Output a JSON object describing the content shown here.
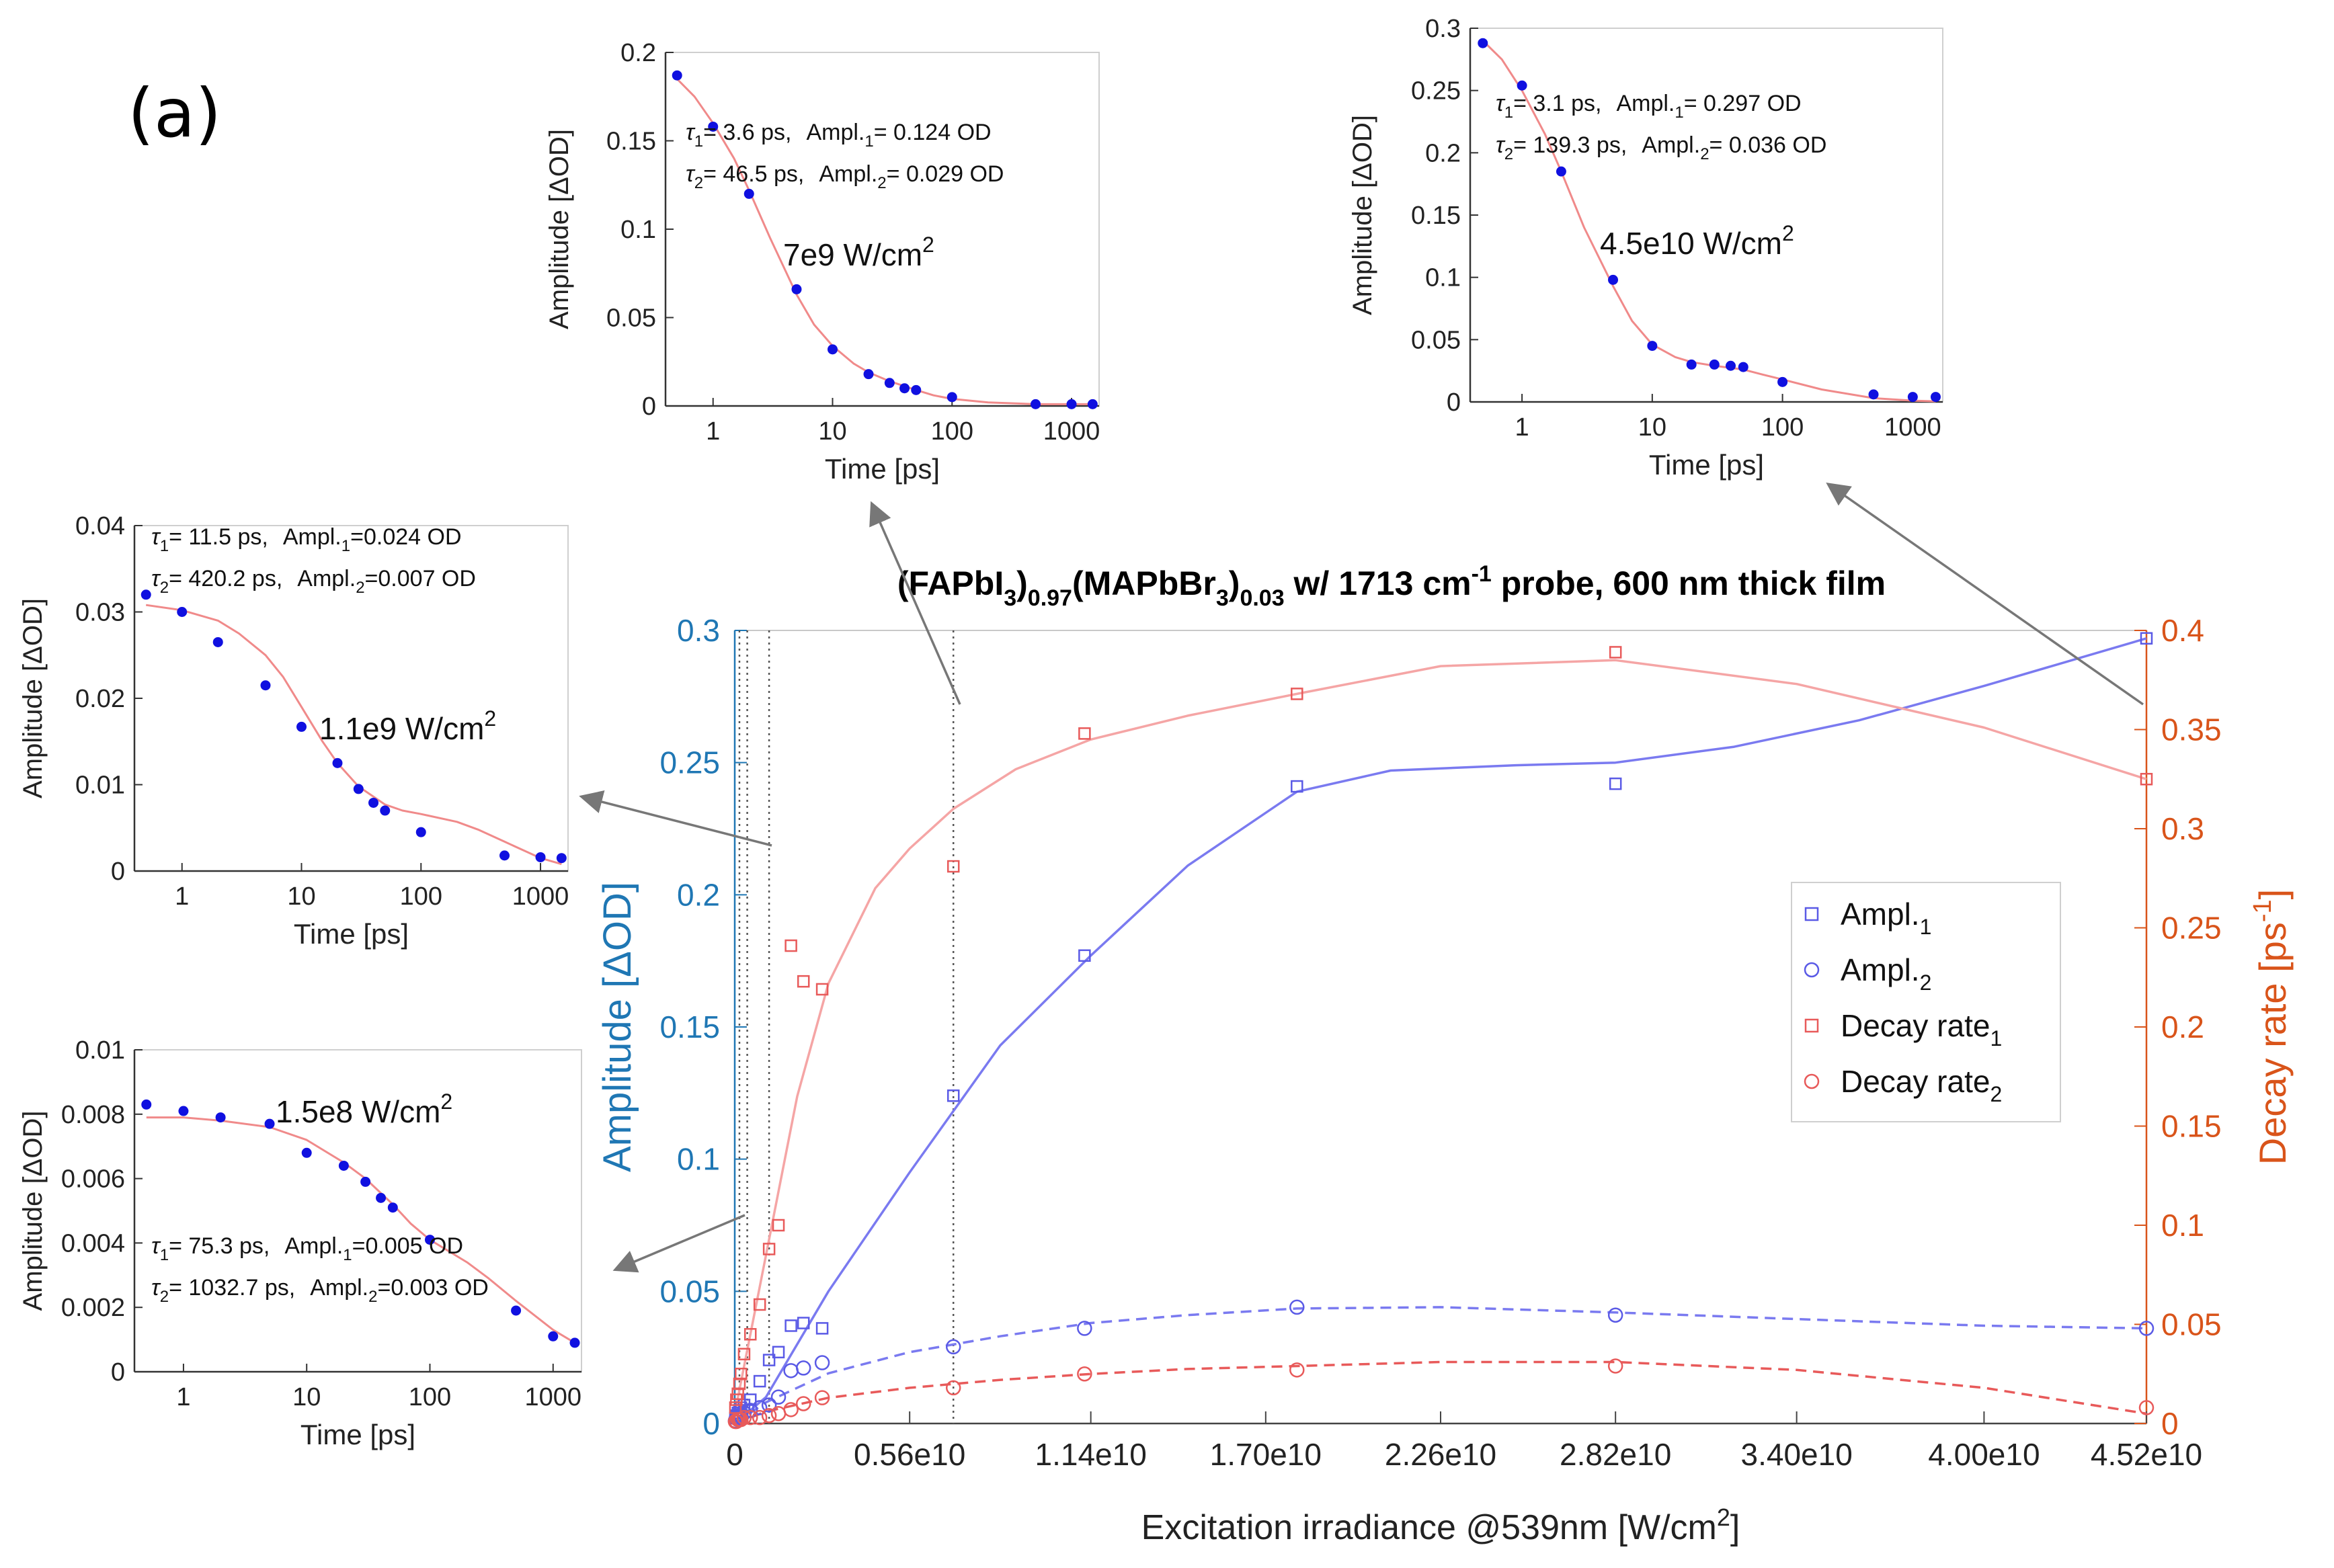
{
  "panel_label": "(a)",
  "chart_data": [
    {
      "id": "main",
      "type": "scatter",
      "title_parts": {
        "t1": "(FAPbI",
        "s1": "3",
        "t2": ")",
        "s2": "0.97",
        "t3": "(MAPbBr",
        "s3": "3",
        "t4": ")",
        "s4": "0.03",
        "t5": " w/ 1713 cm",
        "sup1": "-1",
        "t6": " probe, 600 nm thick film"
      },
      "xlabel": "Excitation irradiance @539nm [W/cm",
      "xlabel_sup": "2",
      "xlabel_end": "]",
      "ylabel_left": "Amplitude [ΔOD]",
      "ylabel_right": "Decay rate [ps",
      "ylabel_right_sup": "-1",
      "ylabel_right_end": "]",
      "xlim": [
        0,
        45200000000.0
      ],
      "ylim_left": [
        0,
        0.3
      ],
      "ylim_right": [
        0,
        0.4
      ],
      "x_ticks": [
        0,
        5600000000.0,
        11400000000.0,
        17000000000.0,
        22600000000.0,
        28200000000.0,
        34000000000.0,
        40000000000.0,
        45200000000.0
      ],
      "x_tick_labels": [
        "0",
        "0.56e10",
        "1.14e10",
        "1.70e10",
        "2.26e10",
        "2.82e10",
        "3.40e10",
        "4.00e10",
        "4.52e10"
      ],
      "y_left_ticks": [
        0,
        0.05,
        0.1,
        0.15,
        0.2,
        0.25,
        0.3
      ],
      "y_left_tick_labels": [
        "0",
        "0.05",
        "0.1",
        "0.15",
        "0.2",
        "0.25",
        "0.3"
      ],
      "y_right_ticks": [
        0,
        0.05,
        0.1,
        0.15,
        0.2,
        0.25,
        0.3,
        0.35,
        0.4
      ],
      "y_right_tick_labels": [
        "0",
        "0.05",
        "0.1",
        "0.15",
        "0.2",
        "0.25",
        "0.3",
        "0.35",
        "0.4"
      ],
      "vlines": [
        150000000.0,
        400000000.0,
        1100000000.0,
        7000000000.0
      ],
      "legend": {
        "position": "right-middle",
        "entries": [
          {
            "text": "Ampl.",
            "sub": "1",
            "color": "#5a5ae6",
            "marker": "square"
          },
          {
            "text": "Ampl.",
            "sub": "2",
            "color": "#5a5ae6",
            "marker": "circle"
          },
          {
            "text": "Decay rate",
            "sub": "1",
            "color": "#e85a5a",
            "marker": "square"
          },
          {
            "text": "Decay rate",
            "sub": "2",
            "color": "#e85a5a",
            "marker": "circle"
          }
        ]
      },
      "series": [
        {
          "name": "Ampl.1",
          "axis": "left",
          "marker": "square",
          "color": "#5a5ae6",
          "x": [
            20000000.0,
            50000000.0,
            100000000.0,
            150000000.0,
            200000000.0,
            300000000.0,
            500000000.0,
            800000000.0,
            1100000000.0,
            1400000000.0,
            1800000000.0,
            2200000000.0,
            2800000000.0,
            7000000000.0,
            11200000000.0,
            18000000000.0,
            28200000000.0,
            45200000000.0
          ],
          "y": [
            0.002,
            0.003,
            0.004,
            0.005,
            0.006,
            0.007,
            0.009,
            0.016,
            0.024,
            0.027,
            0.037,
            0.038,
            0.036,
            0.124,
            0.177,
            0.241,
            0.242,
            0.297
          ]
        },
        {
          "name": "Ampl.2",
          "axis": "left",
          "marker": "circle",
          "color": "#5a5ae6",
          "x": [
            20000000.0,
            50000000.0,
            100000000.0,
            150000000.0,
            200000000.0,
            300000000.0,
            500000000.0,
            800000000.0,
            1100000000.0,
            1400000000.0,
            1800000000.0,
            2200000000.0,
            2800000000.0,
            7000000000.0,
            11200000000.0,
            18000000000.0,
            28200000000.0,
            45200000000.0
          ],
          "y": [
            0.001,
            0.002,
            0.002,
            0.003,
            0.003,
            0.004,
            0.005,
            0.006,
            0.007,
            0.01,
            0.02,
            0.021,
            0.023,
            0.029,
            0.036,
            0.044,
            0.041,
            0.036
          ]
        },
        {
          "name": "Decay rate1",
          "axis": "right",
          "marker": "square",
          "color": "#e85a5a",
          "x": [
            20000000.0,
            50000000.0,
            100000000.0,
            150000000.0,
            200000000.0,
            300000000.0,
            500000000.0,
            800000000.0,
            1100000000.0,
            1400000000.0,
            1800000000.0,
            2200000000.0,
            2800000000.0,
            7000000000.0,
            11200000000.0,
            18000000000.0,
            28200000000.0,
            45200000000.0
          ],
          "y": [
            0.008,
            0.012,
            0.015,
            0.02,
            0.025,
            0.035,
            0.045,
            0.06,
            0.088,
            0.1,
            0.241,
            0.223,
            0.219,
            0.281,
            0.348,
            0.368,
            0.389,
            0.325
          ]
        },
        {
          "name": "Decay rate2",
          "axis": "right",
          "marker": "circle",
          "color": "#e85a5a",
          "x": [
            20000000.0,
            50000000.0,
            100000000.0,
            150000000.0,
            200000000.0,
            300000000.0,
            500000000.0,
            800000000.0,
            1100000000.0,
            1400000000.0,
            1800000000.0,
            2200000000.0,
            2800000000.0,
            7000000000.0,
            11200000000.0,
            18000000000.0,
            28200000000.0,
            45200000000.0
          ],
          "y": [
            0.001,
            0.001,
            0.002,
            0.002,
            0.002,
            0.003,
            0.003,
            0.003,
            0.004,
            0.005,
            0.007,
            0.01,
            0.013,
            0.018,
            0.025,
            0.027,
            0.029,
            0.008
          ]
        }
      ],
      "fits": [
        {
          "name": "Ampl.1 fit",
          "axis": "left",
          "dash": false,
          "color": "#7a7af0",
          "x": [
            0,
            1000000000.0,
            3000000000.0,
            5600000000.0,
            8500000000.0,
            11400000000.0,
            14500000000.0,
            18000000000.0,
            21000000000.0,
            25000000000.0,
            28200000000.0,
            32000000000.0,
            36000000000.0,
            40000000000.0,
            45200000000.0
          ],
          "y": [
            0,
            0.01,
            0.05,
            0.095,
            0.143,
            0.177,
            0.211,
            0.239,
            0.247,
            0.249,
            0.25,
            0.256,
            0.266,
            0.279,
            0.297
          ]
        },
        {
          "name": "Ampl.2 fit",
          "axis": "left",
          "dash": true,
          "color": "#7a7af0",
          "x": [
            0,
            1000000000.0,
            3000000000.0,
            5600000000.0,
            8500000000.0,
            11400000000.0,
            14500000000.0,
            18000000000.0,
            22600000000.0,
            28200000000.0,
            34000000000.0,
            40000000000.0,
            45200000000.0
          ],
          "y": [
            0,
            0.008,
            0.019,
            0.027,
            0.033,
            0.038,
            0.041,
            0.0435,
            0.044,
            0.042,
            0.0395,
            0.037,
            0.036
          ]
        },
        {
          "name": "Decay rate1 fit",
          "axis": "right",
          "dash": false,
          "color": "#f5a5a5",
          "x": [
            0,
            1000000000.0,
            2000000000.0,
            3000000000.0,
            4500000000.0,
            5600000000.0,
            7000000000.0,
            9000000000.0,
            11400000000.0,
            14500000000.0,
            18000000000.0,
            22600000000.0,
            28200000000.0,
            34000000000.0,
            40000000000.0,
            45200000000.0
          ],
          "y": [
            0.005,
            0.085,
            0.165,
            0.222,
            0.27,
            0.29,
            0.31,
            0.33,
            0.345,
            0.357,
            0.368,
            0.382,
            0.385,
            0.373,
            0.351,
            0.325
          ]
        },
        {
          "name": "Decay rate2 fit",
          "axis": "right",
          "dash": true,
          "color": "#e85a5a",
          "x": [
            0,
            1000000000.0,
            3000000000.0,
            5600000000.0,
            8500000000.0,
            11400000000.0,
            14500000000.0,
            18000000000.0,
            22600000000.0,
            28200000000.0,
            34000000000.0,
            40000000000.0,
            45200000000.0
          ],
          "y": [
            0,
            0.006,
            0.013,
            0.018,
            0.022,
            0.025,
            0.0275,
            0.029,
            0.031,
            0.031,
            0.027,
            0.018,
            0.005
          ]
        }
      ]
    },
    {
      "id": "inset-7e9",
      "type": "line",
      "xscale": "log",
      "xlim": [
        0.4,
        1700
      ],
      "ylim": [
        0,
        0.2
      ],
      "x_ticks": [
        1,
        10,
        100,
        1000
      ],
      "x_tick_labels": [
        "1",
        "10",
        "100",
        "1000"
      ],
      "y_ticks": [
        0,
        0.05,
        0.1,
        0.15,
        0.2
      ],
      "y_tick_labels": [
        "0",
        "0.05",
        "0.1",
        "0.15",
        "0.2"
      ],
      "xlabel": "Time [ps]",
      "ylabel": "Amplitude [ΔOD]",
      "irradiance": "7e9 W/cm",
      "irradiance_sup": "2",
      "annot": {
        "t1": "τ",
        "t1s": "1",
        "t1v": "= 3.6 ps,",
        "a1": "Ampl.",
        "a1s": "1",
        "a1v": "= 0.124 OD",
        "t2": "τ",
        "t2s": "2",
        "t2v": "= 46.5 ps,",
        "a2": "Ampl.",
        "a2s": "2",
        "a2v": "= 0.029 OD"
      },
      "points_x": [
        0.5,
        1,
        2,
        5,
        10,
        20,
        30,
        40,
        50,
        100,
        500,
        1000,
        1500
      ],
      "points_y": [
        0.187,
        0.158,
        0.12,
        0.066,
        0.032,
        0.018,
        0.013,
        0.01,
        0.009,
        0.005,
        0.001,
        0.001,
        0.001
      ],
      "fit_x": [
        0.5,
        0.7,
        1,
        1.5,
        2,
        3,
        5,
        7,
        10,
        15,
        20,
        30,
        50,
        70,
        100,
        200,
        500,
        1000,
        1500
      ],
      "fit_y": [
        0.185,
        0.175,
        0.16,
        0.14,
        0.122,
        0.095,
        0.063,
        0.046,
        0.034,
        0.024,
        0.019,
        0.014,
        0.009,
        0.006,
        0.004,
        0.002,
        0.001,
        0.001,
        0.001
      ]
    },
    {
      "id": "inset-4.5e10",
      "type": "line",
      "xscale": "log",
      "xlim": [
        0.4,
        1700
      ],
      "ylim": [
        0,
        0.3
      ],
      "x_ticks": [
        1,
        10,
        100,
        1000
      ],
      "x_tick_labels": [
        "1",
        "10",
        "100",
        "1000"
      ],
      "y_ticks": [
        0,
        0.05,
        0.1,
        0.15,
        0.2,
        0.25,
        0.3
      ],
      "y_tick_labels": [
        "0",
        "0.05",
        "0.1",
        "0.15",
        "0.2",
        "0.25",
        "0.3"
      ],
      "xlabel": "Time [ps]",
      "ylabel": "Amplitude [ΔOD]",
      "irradiance": "4.5e10 W/cm",
      "irradiance_sup": "2",
      "annot": {
        "t1": "τ",
        "t1s": "1",
        "t1v": "= 3.1 ps,",
        "a1": "Ampl.",
        "a1s": "1",
        "a1v": "= 0.297 OD",
        "t2": "τ",
        "t2s": "2",
        "t2v": "= 139.3 ps,",
        "a2": "Ampl.",
        "a2s": "2",
        "a2v": "= 0.036 OD"
      },
      "points_x": [
        0.5,
        1,
        2,
        5,
        10,
        20,
        30,
        40,
        50,
        100,
        500,
        1000,
        1500
      ],
      "points_y": [
        0.288,
        0.254,
        0.185,
        0.098,
        0.045,
        0.03,
        0.03,
        0.029,
        0.028,
        0.016,
        0.006,
        0.004,
        0.004
      ],
      "fit_x": [
        0.5,
        0.7,
        1,
        1.5,
        2,
        3,
        5,
        7,
        10,
        15,
        20,
        30,
        50,
        70,
        100,
        200,
        500,
        1000,
        1500
      ],
      "fit_y": [
        0.29,
        0.275,
        0.25,
        0.215,
        0.185,
        0.14,
        0.093,
        0.065,
        0.046,
        0.036,
        0.032,
        0.029,
        0.026,
        0.022,
        0.018,
        0.01,
        0.003,
        0.001,
        0.0005
      ]
    },
    {
      "id": "inset-1.1e9",
      "type": "line",
      "xscale": "log",
      "xlim": [
        0.4,
        1700
      ],
      "ylim": [
        0,
        0.04
      ],
      "x_ticks": [
        1,
        10,
        100,
        1000
      ],
      "x_tick_labels": [
        "1",
        "10",
        "100",
        "1000"
      ],
      "y_ticks": [
        0,
        0.01,
        0.02,
        0.03,
        0.04
      ],
      "y_tick_labels": [
        "0",
        "0.01",
        "0.02",
        "0.03",
        "0.04"
      ],
      "xlabel": "Time [ps]",
      "ylabel": "Amplitude [ΔOD]",
      "irradiance": "1.1e9 W/cm",
      "irradiance_sup": "2",
      "annot": {
        "t1": "τ",
        "t1s": "1",
        "t1v": "= 11.5 ps,",
        "a1": "Ampl.",
        "a1s": "1",
        "a1v": "=0.024 OD",
        "t2": "τ",
        "t2s": "2",
        "t2v": "= 420.2 ps,",
        "a2": "Ampl.",
        "a2s": "2",
        "a2v": "=0.007 OD"
      },
      "points_x": [
        0.5,
        1,
        2,
        5,
        10,
        20,
        30,
        40,
        50,
        100,
        500,
        1000,
        1500
      ],
      "points_y": [
        0.032,
        0.03,
        0.0265,
        0.0215,
        0.0167,
        0.0125,
        0.0095,
        0.0079,
        0.007,
        0.0045,
        0.0018,
        0.0016,
        0.0015
      ],
      "fit_x": [
        0.5,
        1,
        2,
        3,
        5,
        7,
        10,
        15,
        20,
        30,
        50,
        70,
        100,
        200,
        300,
        500,
        1000,
        1500
      ],
      "fit_y": [
        0.0308,
        0.0302,
        0.029,
        0.0275,
        0.025,
        0.0225,
        0.019,
        0.015,
        0.0125,
        0.0098,
        0.0077,
        0.007,
        0.0066,
        0.0057,
        0.0048,
        0.0034,
        0.0015,
        0.0008
      ]
    },
    {
      "id": "inset-1.5e8",
      "type": "line",
      "xscale": "log",
      "xlim": [
        0.4,
        1700
      ],
      "ylim": [
        0,
        0.01
      ],
      "x_ticks": [
        1,
        10,
        100,
        1000
      ],
      "x_tick_labels": [
        "1",
        "10",
        "100",
        "1000"
      ],
      "y_ticks": [
        0,
        0.002,
        0.004,
        0.006,
        0.008,
        0.01
      ],
      "y_tick_labels": [
        "0",
        "0.002",
        "0.004",
        "0.006",
        "0.008",
        "0.01"
      ],
      "xlabel": "Time [ps]",
      "ylabel": "Amplitude [ΔOD]",
      "irradiance": "1.5e8 W/cm",
      "irradiance_sup": "2",
      "annot": {
        "t1": "τ",
        "t1s": "1",
        "t1v": "= 75.3 ps,",
        "a1": "Ampl.",
        "a1s": "1",
        "a1v": "=0.005 OD",
        "t2": "τ",
        "t2s": "2",
        "t2v": "= 1032.7 ps,",
        "a2": "Ampl.",
        "a2s": "2",
        "a2v": "=0.003 OD"
      },
      "points_x": [
        0.5,
        1,
        2,
        5,
        10,
        20,
        30,
        40,
        50,
        100,
        500,
        1000,
        1500
      ],
      "points_y": [
        0.0083,
        0.0081,
        0.0079,
        0.0077,
        0.0068,
        0.0064,
        0.0059,
        0.0054,
        0.0051,
        0.0041,
        0.0019,
        0.0011,
        0.0009
      ],
      "fit_x": [
        0.5,
        1,
        2,
        5,
        10,
        20,
        30,
        50,
        70,
        100,
        200,
        300,
        500,
        1000,
        1500
      ],
      "fit_y": [
        0.0079,
        0.0079,
        0.0078,
        0.0076,
        0.0072,
        0.0065,
        0.006,
        0.0052,
        0.0046,
        0.0041,
        0.0034,
        0.0029,
        0.0022,
        0.0013,
        0.0009
      ]
    }
  ]
}
